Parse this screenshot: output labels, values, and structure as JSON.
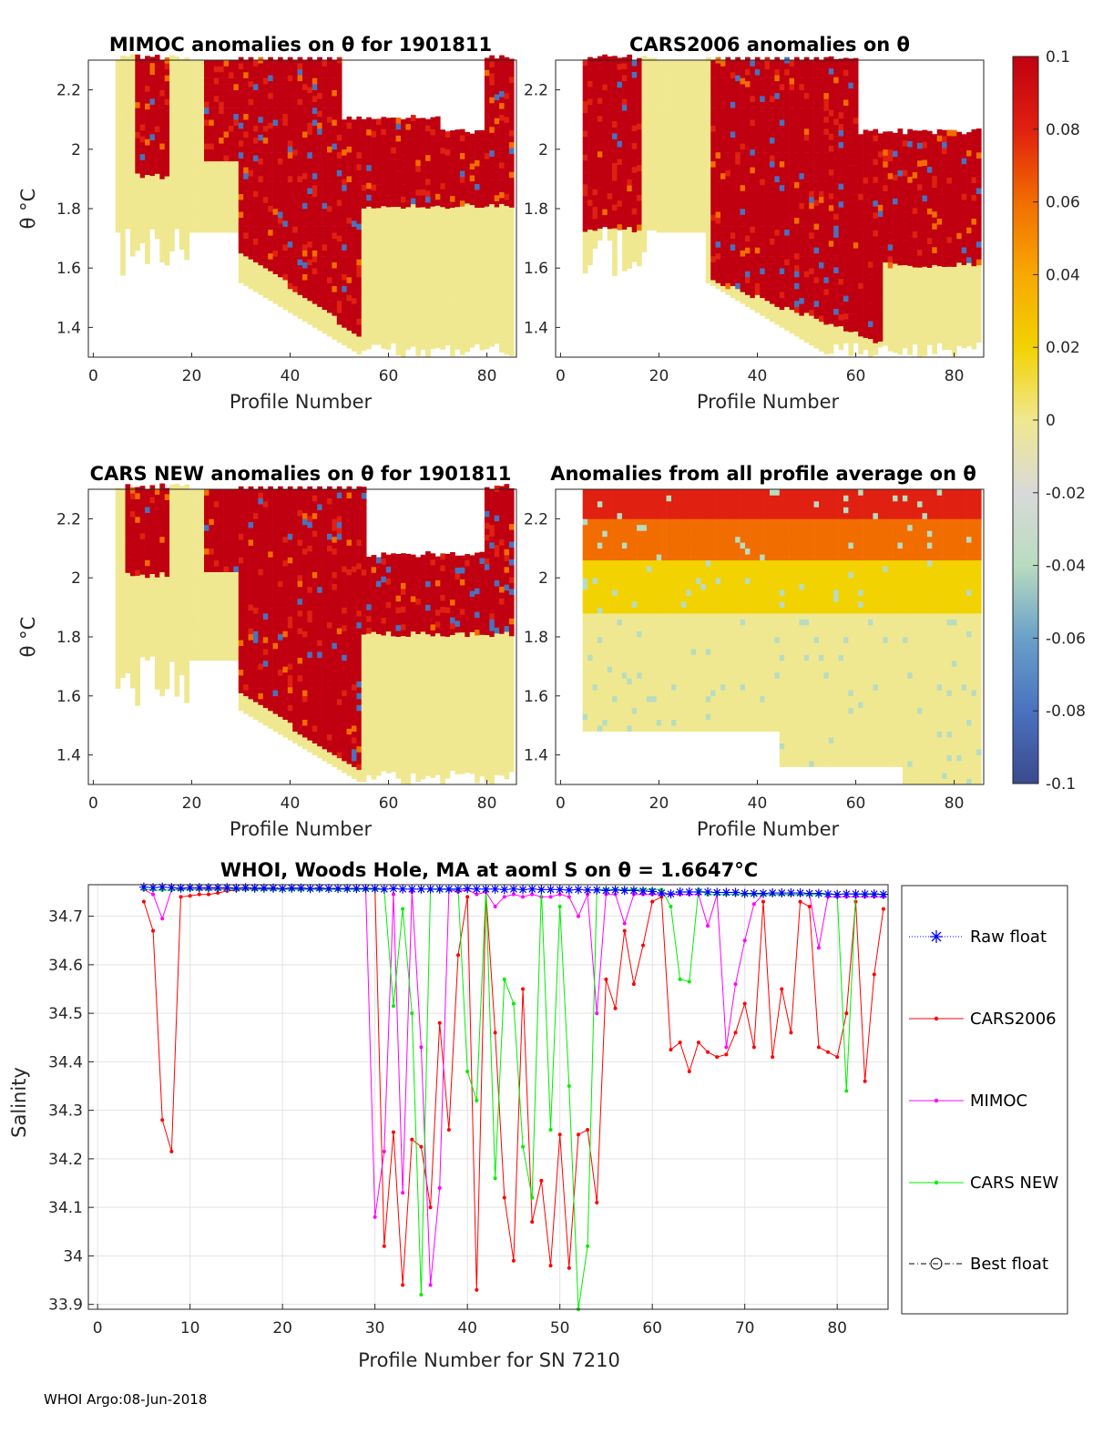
{
  "figure": {
    "footer": "WHOI Argo:08-Jun-2018"
  },
  "panels": [
    {
      "id": "mimoc",
      "title": "MIMOC anomalies on θ  for 1901811",
      "xlabel": "Profile Number",
      "ylabel": "θ °C",
      "xticks": [
        "0",
        "20",
        "40",
        "60",
        "80"
      ],
      "yticks": [
        "1.4",
        "1.6",
        "1.8",
        "2",
        "2.2"
      ],
      "xlim": [
        -1,
        86
      ],
      "ylim": [
        1.3,
        2.3
      ]
    },
    {
      "id": "cars2006",
      "title": "CARS2006 anomalies on θ",
      "xlabel": "Profile Number",
      "ylabel": "",
      "xticks": [
        "0",
        "20",
        "40",
        "60",
        "80"
      ],
      "yticks": [
        "1.4",
        "1.6",
        "1.8",
        "2",
        "2.2"
      ],
      "xlim": [
        -1,
        86
      ],
      "ylim": [
        1.3,
        2.3
      ]
    },
    {
      "id": "carsnew",
      "title": "CARS NEW anomalies on θ for 1901811",
      "xlabel": "Profile Number",
      "ylabel": "θ °C",
      "xticks": [
        "0",
        "20",
        "40",
        "60",
        "80"
      ],
      "yticks": [
        "1.4",
        "1.6",
        "1.8",
        "2",
        "2.2"
      ],
      "xlim": [
        -1,
        86
      ],
      "ylim": [
        1.3,
        2.3
      ]
    },
    {
      "id": "allavg",
      "title": "Anomalies from all profile average on θ",
      "xlabel": "Profile Number",
      "ylabel": "",
      "xticks": [
        "0",
        "20",
        "40",
        "60",
        "80"
      ],
      "yticks": [
        "1.4",
        "1.6",
        "1.8",
        "2",
        "2.2"
      ],
      "xlim": [
        -1,
        86
      ],
      "ylim": [
        1.3,
        2.3
      ]
    }
  ],
  "colorbar": {
    "ticks": [
      "0.1",
      "0.08",
      "0.06",
      "0.04",
      "0.02",
      "0",
      "-0.02",
      "-0.04",
      "-0.06",
      "-0.08",
      "-0.1"
    ],
    "range": [
      -0.1,
      0.1
    ],
    "colors": [
      "#3a4a8c",
      "#4a72c0",
      "#6aa0c8",
      "#b8dcc0",
      "#d9d9d9",
      "#f0e890",
      "#f2d200",
      "#f7a800",
      "#f26d00",
      "#e02010",
      "#c00010"
    ]
  },
  "chart_data": {
    "type": "line",
    "title": "WHOI, Woods Hole, MA at aoml S on θ = 1.6647°C",
    "xlabel": "Profile Number for SN 7210",
    "ylabel": "Salinity",
    "xlim": [
      -1,
      85.5
    ],
    "ylim": [
      33.89,
      34.765
    ],
    "xticks": [
      "0",
      "10",
      "20",
      "30",
      "40",
      "50",
      "60",
      "70",
      "80"
    ],
    "yticks": [
      "33.9",
      "34",
      "34.1",
      "34.2",
      "34.3",
      "34.4",
      "34.5",
      "34.6",
      "34.7"
    ],
    "grid": true,
    "legend_position": "outside-right",
    "series": [
      {
        "name": "Raw float",
        "color": "#0000ff",
        "marker": "star",
        "linestyle": "dotted",
        "x": [
          5,
          6,
          7,
          8,
          9,
          10,
          11,
          12,
          13,
          14,
          15,
          16,
          17,
          18,
          19,
          20,
          21,
          22,
          23,
          24,
          25,
          26,
          27,
          28,
          29,
          30,
          31,
          32,
          33,
          34,
          35,
          36,
          37,
          38,
          39,
          40,
          41,
          42,
          43,
          44,
          45,
          46,
          47,
          48,
          49,
          50,
          51,
          52,
          53,
          54,
          55,
          56,
          57,
          58,
          59,
          60,
          61,
          62,
          63,
          64,
          65,
          66,
          67,
          68,
          69,
          70,
          71,
          72,
          73,
          74,
          75,
          76,
          77,
          78,
          79,
          80,
          81,
          82,
          83,
          84,
          85
        ],
        "y": [
          34.76,
          34.759,
          34.76,
          34.759,
          34.758,
          34.759,
          34.759,
          34.759,
          34.759,
          34.759,
          34.758,
          34.759,
          34.758,
          34.758,
          34.758,
          34.757,
          34.758,
          34.758,
          34.757,
          34.758,
          34.757,
          34.757,
          34.757,
          34.757,
          34.757,
          34.757,
          34.756,
          34.757,
          34.756,
          34.756,
          34.756,
          34.756,
          34.756,
          34.756,
          34.756,
          34.757,
          34.756,
          34.756,
          34.756,
          34.755,
          34.756,
          34.755,
          34.756,
          34.755,
          34.755,
          34.755,
          34.754,
          34.755,
          34.754,
          34.754,
          34.753,
          34.754,
          34.753,
          34.753,
          34.752,
          34.751,
          34.748,
          34.746,
          34.75,
          34.75,
          34.75,
          34.75,
          34.749,
          34.749,
          34.749,
          34.747,
          34.747,
          34.747,
          34.748,
          34.748,
          34.748,
          34.748,
          34.747,
          34.747,
          34.746,
          34.745,
          34.746,
          34.746,
          34.746,
          34.746,
          34.745
        ]
      },
      {
        "name": "CARS2006",
        "color": "#ff0000",
        "marker": "dot",
        "linestyle": "solid",
        "x": [
          5,
          6,
          7,
          8,
          9,
          10,
          11,
          12,
          13,
          14,
          15,
          16,
          17,
          18,
          19,
          20,
          21,
          22,
          23,
          24,
          25,
          26,
          27,
          28,
          29,
          30,
          31,
          32,
          33,
          34,
          35,
          36,
          37,
          38,
          39,
          40,
          41,
          42,
          43,
          44,
          45,
          46,
          47,
          48,
          49,
          50,
          51,
          52,
          53,
          54,
          55,
          56,
          57,
          58,
          59,
          60,
          61,
          62,
          63,
          64,
          65,
          66,
          67,
          68,
          69,
          70,
          71,
          72,
          73,
          74,
          75,
          76,
          77,
          78,
          79,
          80,
          81,
          82,
          83,
          84,
          85
        ],
        "y": [
          34.73,
          34.67,
          34.28,
          34.215,
          34.74,
          34.742,
          34.745,
          34.745,
          34.748,
          34.752,
          34.754,
          34.755,
          34.756,
          34.756,
          34.757,
          34.757,
          34.757,
          34.757,
          34.757,
          34.756,
          34.757,
          34.757,
          34.757,
          34.757,
          34.757,
          34.757,
          34.02,
          34.255,
          33.94,
          34.24,
          34.225,
          34.1,
          34.48,
          34.26,
          34.62,
          34.74,
          33.93,
          34.75,
          34.46,
          34.12,
          33.99,
          34.55,
          34.07,
          34.155,
          33.98,
          34.25,
          33.975,
          34.25,
          34.26,
          34.11,
          34.57,
          34.51,
          34.67,
          34.56,
          34.64,
          34.73,
          34.74,
          34.425,
          34.44,
          34.38,
          34.44,
          34.42,
          34.41,
          34.415,
          34.46,
          34.52,
          34.43,
          34.73,
          34.41,
          34.55,
          34.46,
          34.73,
          34.72,
          34.43,
          34.42,
          34.41,
          34.5,
          34.73,
          34.36,
          34.58,
          34.715
        ]
      },
      {
        "name": "MIMOC",
        "color": "#ff00ff",
        "marker": "dot",
        "linestyle": "solid",
        "x": [
          5,
          6,
          7,
          8,
          9,
          10,
          11,
          12,
          13,
          14,
          15,
          16,
          17,
          18,
          19,
          20,
          21,
          22,
          23,
          24,
          25,
          26,
          27,
          28,
          29,
          30,
          31,
          32,
          33,
          34,
          35,
          36,
          37,
          38,
          39,
          40,
          41,
          42,
          43,
          44,
          45,
          46,
          47,
          48,
          49,
          50,
          51,
          52,
          53,
          54,
          55,
          56,
          57,
          58,
          59,
          60,
          61,
          62,
          63,
          64,
          65,
          66,
          67,
          68,
          69,
          70,
          71,
          72,
          73,
          74,
          75,
          76,
          77,
          78,
          79,
          80,
          81,
          82,
          83,
          84,
          85
        ],
        "y": [
          34.755,
          34.745,
          34.695,
          34.755,
          34.756,
          34.756,
          34.756,
          34.757,
          34.757,
          34.757,
          34.757,
          34.757,
          34.757,
          34.757,
          34.757,
          34.757,
          34.757,
          34.757,
          34.757,
          34.757,
          34.757,
          34.757,
          34.757,
          34.757,
          34.757,
          34.08,
          34.215,
          34.745,
          34.13,
          34.75,
          34.43,
          33.94,
          34.14,
          34.755,
          34.75,
          34.755,
          34.745,
          34.75,
          34.72,
          34.74,
          34.745,
          34.74,
          34.745,
          34.74,
          34.74,
          34.745,
          34.74,
          34.7,
          34.745,
          34.5,
          34.745,
          34.745,
          34.685,
          34.745,
          34.745,
          34.745,
          34.745,
          34.745,
          34.745,
          34.745,
          34.745,
          34.68,
          34.745,
          34.43,
          34.56,
          34.65,
          34.725,
          34.745,
          34.745,
          34.745,
          34.745,
          34.745,
          34.745,
          34.635,
          34.74,
          34.74,
          34.74,
          34.74,
          34.74,
          34.74,
          34.74
        ]
      },
      {
        "name": "CARS NEW",
        "color": "#00ee00",
        "marker": "dot",
        "linestyle": "solid",
        "x": [
          5,
          6,
          7,
          8,
          9,
          10,
          11,
          12,
          13,
          14,
          15,
          16,
          17,
          18,
          19,
          20,
          21,
          22,
          23,
          24,
          25,
          26,
          27,
          28,
          29,
          30,
          31,
          32,
          33,
          34,
          35,
          36,
          37,
          38,
          39,
          40,
          41,
          42,
          43,
          44,
          45,
          46,
          47,
          48,
          49,
          50,
          51,
          52,
          53,
          54,
          55,
          56,
          57,
          58,
          59,
          60,
          61,
          62,
          63,
          64,
          65,
          66,
          67,
          68,
          69,
          70,
          71,
          72,
          73,
          74,
          75,
          76,
          77,
          78,
          79,
          80,
          81,
          82,
          83,
          84,
          85
        ],
        "y": [
          34.755,
          34.754,
          34.754,
          34.754,
          34.755,
          34.755,
          34.755,
          34.755,
          34.755,
          34.755,
          34.755,
          34.755,
          34.755,
          34.755,
          34.755,
          34.755,
          34.755,
          34.755,
          34.755,
          34.755,
          34.755,
          34.755,
          34.755,
          34.755,
          34.755,
          34.755,
          34.755,
          34.515,
          34.715,
          34.5,
          33.92,
          34.755,
          34.755,
          34.755,
          34.755,
          34.38,
          34.32,
          34.755,
          34.16,
          34.57,
          34.52,
          34.225,
          34.12,
          34.755,
          34.26,
          34.72,
          34.35,
          33.89,
          34.02,
          34.755,
          34.755,
          34.755,
          34.755,
          34.755,
          34.755,
          34.755,
          34.755,
          34.72,
          34.57,
          34.565,
          34.755,
          34.745,
          34.745,
          34.745,
          34.745,
          34.745,
          34.745,
          34.745,
          34.745,
          34.745,
          34.745,
          34.745,
          34.745,
          34.745,
          34.745,
          34.745,
          34.34,
          34.745,
          34.745,
          34.745,
          34.745
        ]
      },
      {
        "name": "Best float",
        "color": "#000000",
        "marker": "circle",
        "linestyle": "dashdot",
        "x": [],
        "y": []
      }
    ]
  }
}
